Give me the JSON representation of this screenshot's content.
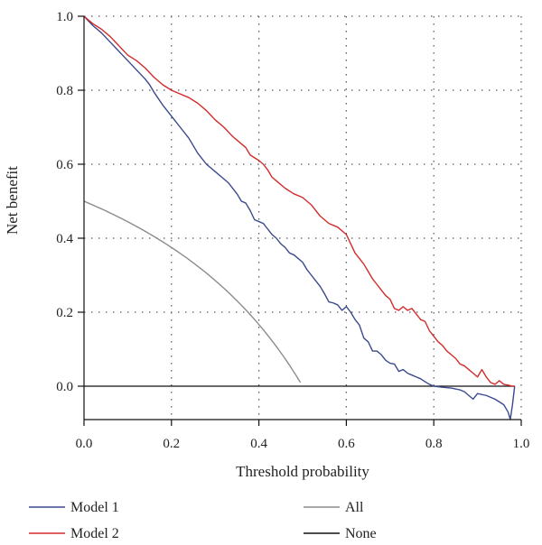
{
  "chart_data": {
    "type": "line",
    "title": "",
    "xlabel": "Threshold probability",
    "ylabel": "Net benefit",
    "xlim": [
      0,
      1
    ],
    "ylim": [
      -0.09,
      1.0
    ],
    "xticks": [
      "0.0",
      "0.2",
      "0.4",
      "0.6",
      "0.8",
      "1.0"
    ],
    "yticks": [
      "0.0",
      "0.2",
      "0.4",
      "0.6",
      "0.8",
      "1.0"
    ],
    "grid": true,
    "legend_position": "bottom",
    "series": [
      {
        "name": "Model 1",
        "color": "#3a4a8c",
        "points": [
          [
            0,
            1.0
          ],
          [
            0.02,
            0.975
          ],
          [
            0.04,
            0.955
          ],
          [
            0.06,
            0.93
          ],
          [
            0.08,
            0.905
          ],
          [
            0.1,
            0.88
          ],
          [
            0.12,
            0.855
          ],
          [
            0.14,
            0.83
          ],
          [
            0.15,
            0.815
          ],
          [
            0.16,
            0.795
          ],
          [
            0.18,
            0.76
          ],
          [
            0.2,
            0.73
          ],
          [
            0.22,
            0.7
          ],
          [
            0.24,
            0.67
          ],
          [
            0.26,
            0.63
          ],
          [
            0.28,
            0.6
          ],
          [
            0.3,
            0.58
          ],
          [
            0.32,
            0.56
          ],
          [
            0.33,
            0.55
          ],
          [
            0.34,
            0.535
          ],
          [
            0.35,
            0.52
          ],
          [
            0.36,
            0.5
          ],
          [
            0.37,
            0.495
          ],
          [
            0.38,
            0.475
          ],
          [
            0.39,
            0.45
          ],
          [
            0.4,
            0.445
          ],
          [
            0.41,
            0.44
          ],
          [
            0.42,
            0.425
          ],
          [
            0.43,
            0.41
          ],
          [
            0.44,
            0.4
          ],
          [
            0.45,
            0.385
          ],
          [
            0.46,
            0.375
          ],
          [
            0.47,
            0.36
          ],
          [
            0.48,
            0.355
          ],
          [
            0.49,
            0.345
          ],
          [
            0.5,
            0.335
          ],
          [
            0.51,
            0.315
          ],
          [
            0.52,
            0.3
          ],
          [
            0.53,
            0.285
          ],
          [
            0.54,
            0.27
          ],
          [
            0.55,
            0.25
          ],
          [
            0.56,
            0.228
          ],
          [
            0.57,
            0.225
          ],
          [
            0.58,
            0.22
          ],
          [
            0.59,
            0.205
          ],
          [
            0.6,
            0.215
          ],
          [
            0.61,
            0.2
          ],
          [
            0.62,
            0.18
          ],
          [
            0.63,
            0.165
          ],
          [
            0.64,
            0.13
          ],
          [
            0.65,
            0.12
          ],
          [
            0.66,
            0.095
          ],
          [
            0.67,
            0.095
          ],
          [
            0.68,
            0.085
          ],
          [
            0.69,
            0.07
          ],
          [
            0.7,
            0.062
          ],
          [
            0.71,
            0.06
          ],
          [
            0.72,
            0.04
          ],
          [
            0.73,
            0.045
          ],
          [
            0.74,
            0.035
          ],
          [
            0.75,
            0.03
          ],
          [
            0.76,
            0.025
          ],
          [
            0.77,
            0.02
          ],
          [
            0.78,
            0.012
          ],
          [
            0.79,
            0.005
          ],
          [
            0.8,
            0.0
          ],
          [
            0.82,
            -0.003
          ],
          [
            0.84,
            -0.005
          ],
          [
            0.86,
            -0.01
          ],
          [
            0.87,
            -0.015
          ],
          [
            0.88,
            -0.025
          ],
          [
            0.89,
            -0.035
          ],
          [
            0.9,
            -0.02
          ],
          [
            0.92,
            -0.025
          ],
          [
            0.94,
            -0.035
          ],
          [
            0.96,
            -0.05
          ],
          [
            0.97,
            -0.07
          ],
          [
            0.975,
            -0.09
          ],
          [
            0.98,
            -0.05
          ],
          [
            0.985,
            0.0
          ]
        ]
      },
      {
        "name": "Model 2",
        "color": "#d42a2a",
        "points": [
          [
            0,
            1.0
          ],
          [
            0.02,
            0.98
          ],
          [
            0.04,
            0.965
          ],
          [
            0.06,
            0.945
          ],
          [
            0.08,
            0.92
          ],
          [
            0.1,
            0.895
          ],
          [
            0.12,
            0.88
          ],
          [
            0.14,
            0.86
          ],
          [
            0.16,
            0.835
          ],
          [
            0.18,
            0.815
          ],
          [
            0.2,
            0.8
          ],
          [
            0.22,
            0.79
          ],
          [
            0.24,
            0.78
          ],
          [
            0.26,
            0.765
          ],
          [
            0.28,
            0.745
          ],
          [
            0.3,
            0.72
          ],
          [
            0.32,
            0.7
          ],
          [
            0.34,
            0.675
          ],
          [
            0.36,
            0.655
          ],
          [
            0.37,
            0.645
          ],
          [
            0.38,
            0.625
          ],
          [
            0.4,
            0.61
          ],
          [
            0.41,
            0.6
          ],
          [
            0.42,
            0.585
          ],
          [
            0.43,
            0.565
          ],
          [
            0.44,
            0.555
          ],
          [
            0.46,
            0.535
          ],
          [
            0.48,
            0.52
          ],
          [
            0.5,
            0.51
          ],
          [
            0.52,
            0.49
          ],
          [
            0.54,
            0.46
          ],
          [
            0.56,
            0.44
          ],
          [
            0.58,
            0.43
          ],
          [
            0.6,
            0.41
          ],
          [
            0.61,
            0.385
          ],
          [
            0.62,
            0.36
          ],
          [
            0.63,
            0.345
          ],
          [
            0.64,
            0.33
          ],
          [
            0.65,
            0.31
          ],
          [
            0.66,
            0.29
          ],
          [
            0.67,
            0.275
          ],
          [
            0.68,
            0.26
          ],
          [
            0.69,
            0.245
          ],
          [
            0.7,
            0.235
          ],
          [
            0.71,
            0.21
          ],
          [
            0.72,
            0.205
          ],
          [
            0.73,
            0.215
          ],
          [
            0.74,
            0.205
          ],
          [
            0.75,
            0.21
          ],
          [
            0.76,
            0.195
          ],
          [
            0.77,
            0.18
          ],
          [
            0.78,
            0.175
          ],
          [
            0.79,
            0.15
          ],
          [
            0.8,
            0.135
          ],
          [
            0.81,
            0.12
          ],
          [
            0.82,
            0.11
          ],
          [
            0.83,
            0.095
          ],
          [
            0.84,
            0.085
          ],
          [
            0.85,
            0.075
          ],
          [
            0.86,
            0.06
          ],
          [
            0.87,
            0.055
          ],
          [
            0.88,
            0.045
          ],
          [
            0.89,
            0.035
          ],
          [
            0.9,
            0.025
          ],
          [
            0.91,
            0.045
          ],
          [
            0.92,
            0.025
          ],
          [
            0.93,
            0.01
          ],
          [
            0.94,
            0.005
          ],
          [
            0.95,
            0.015
          ],
          [
            0.96,
            0.005
          ],
          [
            0.97,
            0.003
          ],
          [
            0.98,
            0.0
          ],
          [
            0.985,
            0.0
          ]
        ]
      },
      {
        "name": "All",
        "color": "#8c8c8c",
        "function": "treat_all",
        "prevalence": 0.5
      },
      {
        "name": "None",
        "color": "#111111",
        "points": [
          [
            0,
            0
          ],
          [
            1,
            0
          ]
        ]
      }
    ]
  }
}
